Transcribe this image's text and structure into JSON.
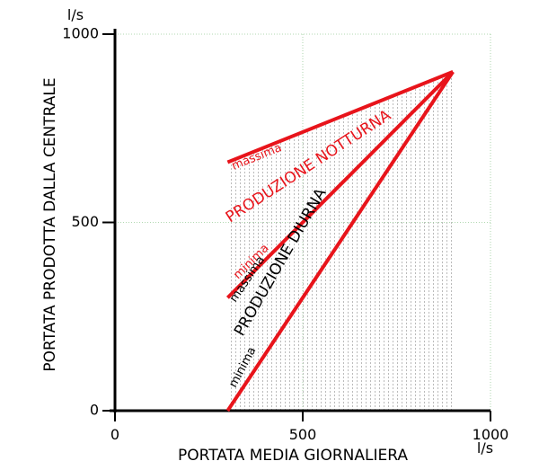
{
  "chart_data": {
    "type": "line",
    "x_title": "PORTATA MEDIA GIORNALIERA",
    "y_title": "PORTATA PRODOTTA DALLA CENTRALE",
    "x_unit": "l/s",
    "y_unit": "l/s",
    "x": [
      300,
      900
    ],
    "series": [
      {
        "color": "#e8141b",
        "values": [
          660,
          900
        ]
      },
      {
        "color": "#e8141b",
        "values": [
          300,
          900
        ]
      },
      {
        "color": "#e8141b",
        "values": [
          0,
          900
        ]
      }
    ],
    "xlim": [
      0,
      1000
    ],
    "ylim": [
      0,
      1000
    ],
    "xticks": [
      0,
      500,
      1000
    ],
    "yticks": [
      0,
      500,
      1000
    ],
    "grid": true,
    "annotations": [
      "massima",
      "PRODUZIONE NOTTURNA",
      "minima",
      "massima",
      "PRODUZIONE DIURNA",
      "minima"
    ]
  }
}
